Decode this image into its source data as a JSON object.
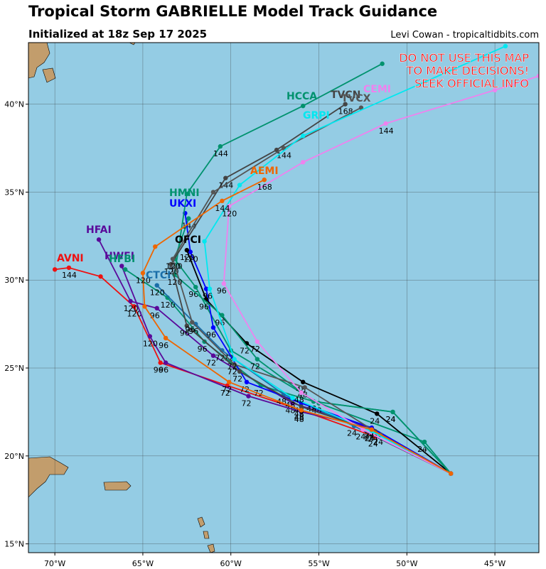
{
  "chart_data": {
    "type": "line",
    "title": "Tropical Storm GABRIELLE Model Track Guidance",
    "subtitle": "Initialized at 18z Sep 17 2025",
    "credit": "Levi Cowan - tropicaltidbits.com",
    "annotation": [
      "DO NOT USE THIS MAP",
      "TO MAKE DECISIONS!",
      "SEEK OFFICIAL INFO"
    ],
    "annotation_color": "#ff0000",
    "xlim": [
      -71.5,
      -42.5
    ],
    "ylim": [
      14.5,
      43.5
    ],
    "xticks": [
      {
        "value": -70,
        "label": "70°W"
      },
      {
        "value": -65,
        "label": "65°W"
      },
      {
        "value": -60,
        "label": "60°W"
      },
      {
        "value": -55,
        "label": "55°W"
      },
      {
        "value": -50,
        "label": "50°W"
      },
      {
        "value": -45,
        "label": "45°W"
      }
    ],
    "yticks": [
      {
        "value": 15,
        "label": "15°N"
      },
      {
        "value": 20,
        "label": "20°N"
      },
      {
        "value": 25,
        "label": "25°N"
      },
      {
        "value": 30,
        "label": "30°N"
      },
      {
        "value": 35,
        "label": "35°N"
      },
      {
        "value": 40,
        "label": "40°N"
      }
    ],
    "grid": true,
    "series": [
      {
        "name": "AVNI",
        "color": "#ee1111",
        "x": [
          -47.5,
          -51.8,
          -56.0,
          -60.2,
          -64.0,
          -65.5,
          -67.4,
          -69.2,
          -70.0
        ],
        "values": [
          19.0,
          21.1,
          22.6,
          24.0,
          25.3,
          28.5,
          30.2,
          30.7,
          30.6
        ],
        "point_labels": [
          null,
          "24",
          "48",
          "72",
          "96",
          "120",
          null,
          "144",
          null
        ]
      },
      {
        "name": "HFAI",
        "color": "#5a0a9a",
        "x": [
          -47.5,
          -52.0,
          -56.5,
          -61.0,
          -64.2,
          -65.7,
          -67.5
        ],
        "values": [
          19.0,
          21.6,
          23.0,
          25.7,
          28.4,
          28.8,
          32.3
        ],
        "point_labels": [
          null,
          "24",
          "48",
          "72",
          "96",
          "120",
          null
        ]
      },
      {
        "name": "HWFI",
        "color": "#5a0a9a",
        "x": [
          -47.5,
          -52.0,
          -56.0,
          -59.0,
          -63.7,
          -64.6,
          -66.2
        ],
        "values": [
          19.0,
          21.6,
          22.5,
          23.4,
          25.3,
          26.8,
          30.8
        ],
        "point_labels": [
          null,
          "24",
          "48",
          "72",
          "96",
          "120",
          null
        ]
      },
      {
        "name": "HFBI",
        "color": "#00926e",
        "x": [
          -47.5,
          -50.8,
          -55.3,
          -58.3,
          -61.5,
          -63.6,
          -66.0
        ],
        "values": [
          19.0,
          22.5,
          23.1,
          24.0,
          26.5,
          29.0,
          30.6
        ],
        "point_labels": [
          null,
          "24",
          "48",
          "72",
          "96",
          "120",
          null
        ]
      },
      {
        "name": "CTCI",
        "color": "#1a6ea8",
        "x": [
          -47.5,
          -53.0,
          -57.0,
          -60.5,
          -62.0,
          -64.2
        ],
        "values": [
          19.0,
          21.7,
          23.5,
          26.0,
          27.5,
          29.7
        ],
        "point_labels": [
          null,
          "24",
          "48",
          "72",
          "96",
          "120"
        ]
      },
      {
        "name": "HMNI",
        "color": "#00926e",
        "x": [
          -47.5,
          -49.0,
          -55.0,
          -60.0,
          -62.0,
          -63.2,
          -62.4
        ],
        "values": [
          19.0,
          20.8,
          23.0,
          26.0,
          29.6,
          31.2,
          33.5
        ],
        "point_labels": [
          null,
          "24",
          "48",
          "72",
          "96",
          "120",
          "144"
        ]
      },
      {
        "name": "UKXI",
        "color": "#0000ff",
        "x": [
          -47.5,
          -52.0,
          -56.0,
          -59.1,
          -61.0,
          -61.4,
          -62.3,
          -62.6
        ],
        "values": [
          19.0,
          21.6,
          23.0,
          24.2,
          27.3,
          29.5,
          31.6,
          33.8
        ],
        "point_labels": [
          null,
          "24",
          "48",
          "72",
          "96",
          null,
          "120",
          null
        ]
      },
      {
        "name": "OFCI",
        "color": "#000000",
        "x": [
          -47.5,
          -51.7,
          -55.9,
          -59.1,
          -61.4,
          -62.5
        ],
        "values": [
          19.0,
          22.4,
          24.2,
          26.4,
          28.9,
          31.7
        ],
        "point_labels": [
          null,
          "24",
          "48",
          "72",
          "96",
          "120"
        ]
      },
      {
        "name": "HCCA",
        "color": "#00926e",
        "x": [
          -47.5,
          -50.8,
          -55.3,
          -58.5,
          -60.5,
          -63.2,
          -62.5,
          -60.6,
          -55.9,
          -51.4
        ],
        "values": [
          19.0,
          22.5,
          23.1,
          25.5,
          28.0,
          30.3,
          34.9,
          37.6,
          39.9,
          42.3
        ],
        "point_labels": [
          null,
          "24",
          "48",
          "72",
          "96",
          "120",
          null,
          "144",
          null,
          null
        ]
      },
      {
        "name": "TVCN",
        "color": "#444444",
        "x": [
          -47.5,
          -51.8,
          -56.0,
          -59.5,
          -62.5,
          -63.4,
          -60.3,
          -57.4,
          -53.5
        ],
        "values": [
          19.0,
          21.4,
          22.8,
          24.8,
          27.4,
          30.9,
          35.8,
          37.4,
          40.0
        ],
        "point_labels": [
          null,
          "24",
          "48",
          "72",
          "96",
          "120",
          "144",
          null,
          "168"
        ]
      },
      {
        "name": "TVCX",
        "color": "#555555",
        "x": [
          -47.5,
          -51.5,
          -55.8,
          -59.8,
          -62.2,
          -63.3,
          -61.0,
          -57.0,
          -52.6
        ],
        "values": [
          19.0,
          21.2,
          23.9,
          25.2,
          27.6,
          31.2,
          35.0,
          37.5,
          39.8
        ],
        "point_labels": [
          null,
          "24",
          "48",
          "72",
          "96",
          "120",
          null,
          "144",
          null
        ]
      },
      {
        "name": "GRPI",
        "color": "#00e8f0",
        "x": [
          -47.5,
          -52.0,
          -56.5,
          -59.8,
          -61.2,
          -61.5,
          -59.5,
          -55.9,
          -44.4
        ],
        "values": [
          19.0,
          21.4,
          23.3,
          25.5,
          29.5,
          32.2,
          35.4,
          38.2,
          43.3
        ],
        "point_labels": [
          null,
          "24",
          "48",
          "72",
          "96",
          null,
          null,
          null,
          null
        ]
      },
      {
        "name": "CEMI",
        "color": "#ee82ee",
        "x": [
          -47.5,
          -52.5,
          -56.0,
          -58.5,
          -60.4,
          -60.1,
          -55.9,
          -51.2,
          -45.0,
          -42.5
        ],
        "values": [
          19.0,
          21.5,
          23.6,
          26.5,
          29.8,
          34.2,
          36.7,
          38.9,
          40.8,
          41.6
        ],
        "point_labels": [
          null,
          "24",
          "48",
          "72",
          "96",
          "120",
          null,
          "144",
          null,
          null
        ]
      },
      {
        "name": "AEMI",
        "color": "#ee6600",
        "x": [
          -47.5,
          -52.0,
          -56.0,
          -60.1,
          -63.7,
          -64.9,
          -65.0,
          -64.3,
          -60.5,
          -58.1
        ],
        "values": [
          19.0,
          21.5,
          22.6,
          24.2,
          26.7,
          28.5,
          30.4,
          31.9,
          34.5,
          35.7
        ],
        "point_labels": [
          null,
          "24",
          "48",
          "72",
          "96",
          null,
          "120",
          null,
          "144",
          "168"
        ]
      }
    ]
  }
}
